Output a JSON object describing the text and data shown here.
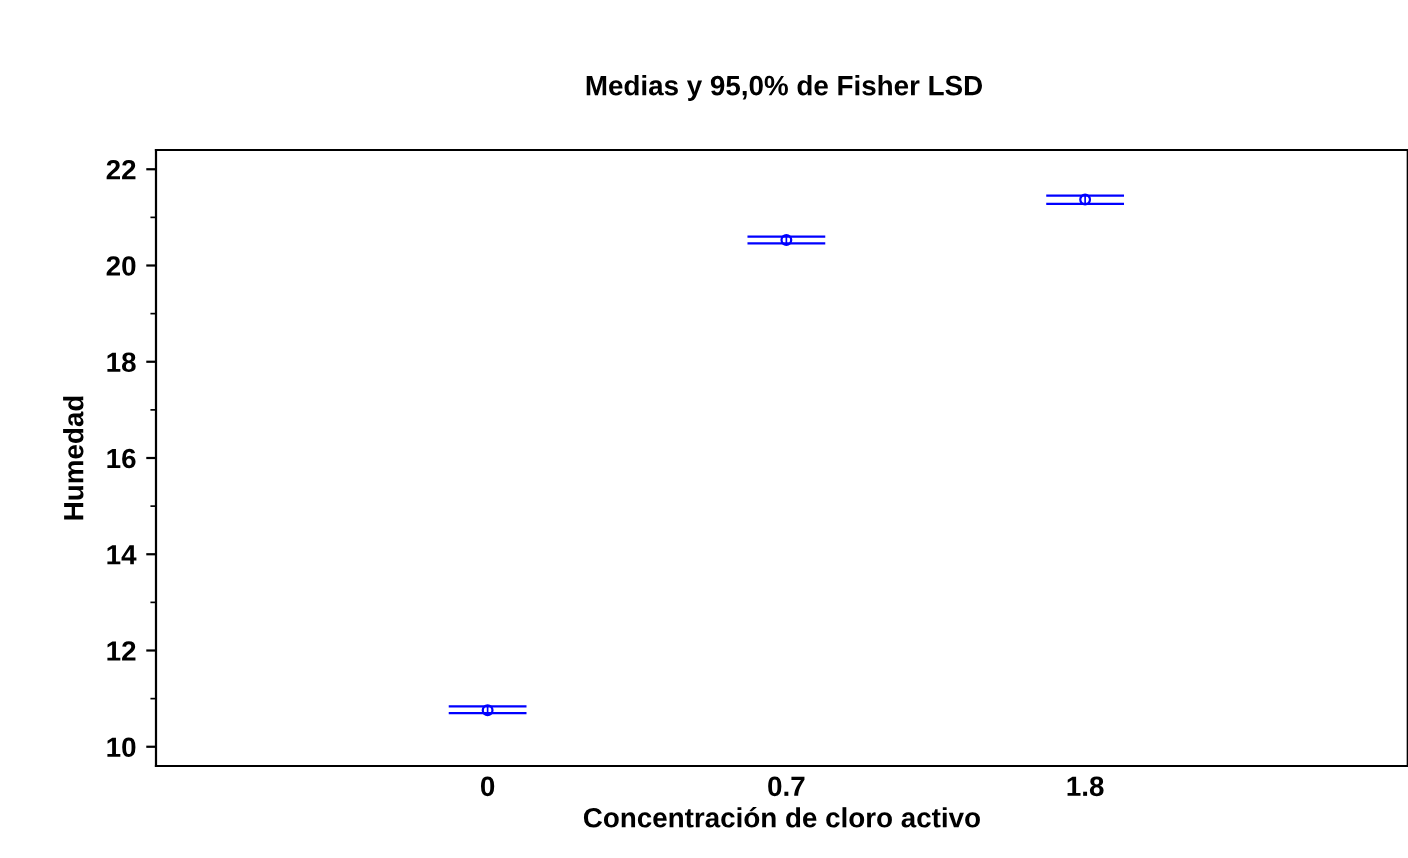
{
  "chart_data": {
    "type": "scatter",
    "title": "Medias y 95,0% de Fisher LSD",
    "xlabel": "Concentración de cloro activo",
    "ylabel": "Humedad",
    "categories": [
      "0",
      "0.7",
      "1.8"
    ],
    "values": [
      10.76,
      20.53,
      21.37
    ],
    "errors": [
      [
        10.7,
        10.84
      ],
      [
        20.46,
        20.6
      ],
      [
        21.28,
        21.45
      ]
    ],
    "color": "#0000ff",
    "marker": "circle",
    "ylim": [
      9.6,
      22.4
    ],
    "yticks": [
      10,
      12,
      14,
      16,
      18,
      20,
      22
    ],
    "grid": false,
    "legend": false
  }
}
